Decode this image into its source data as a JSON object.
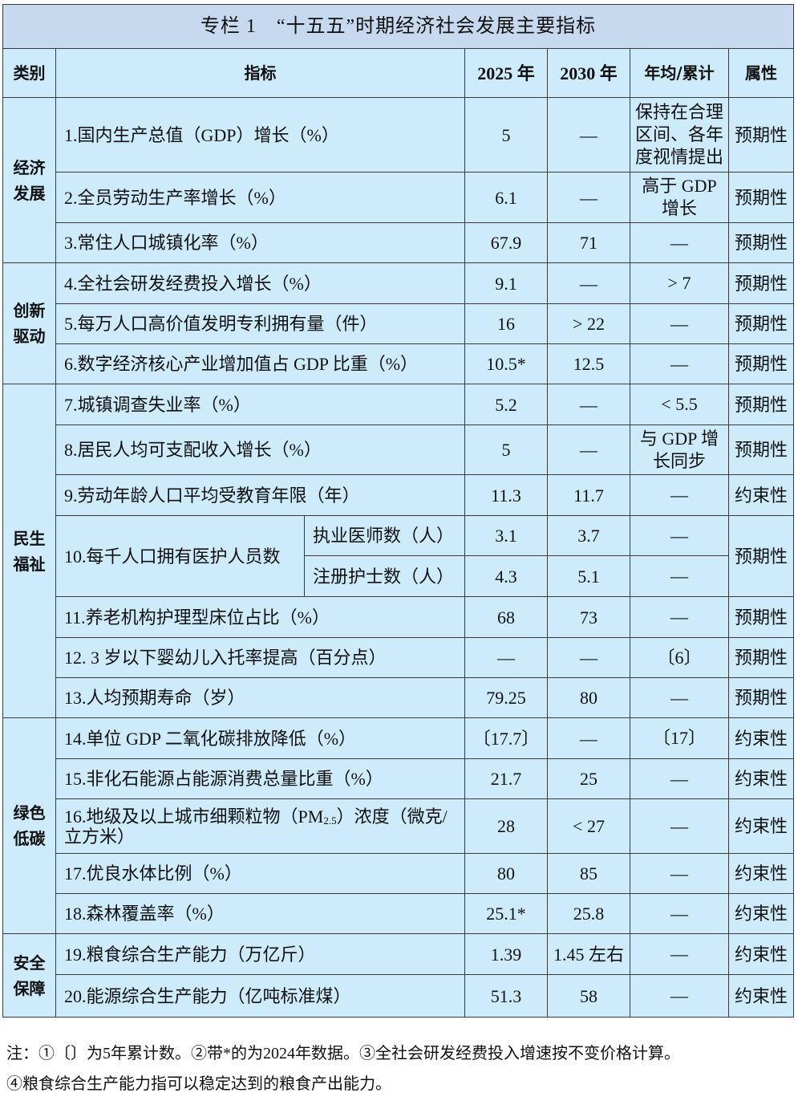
{
  "title": "专栏 1　“十五五”时期经济社会发展主要指标",
  "headers": {
    "category": "类别",
    "indicator": "指标",
    "y2025": "2025 年",
    "y2030": "2030 年",
    "avg": "年均/累计",
    "attr": "属性"
  },
  "groups": [
    {
      "category": "经济发展",
      "rows": [
        {
          "indicator": "1.国内生产总值（GDP）增长（%）",
          "y2025": "5",
          "y2030": "—",
          "avg": "保持在合理区间、各年度视情提出",
          "attr": "预期性"
        },
        {
          "indicator": "2.全员劳动生产率增长（%）",
          "y2025": "6.1",
          "y2030": "—",
          "avg": "高于 GDP 增长",
          "attr": "预期性"
        },
        {
          "indicator": "3.常住人口城镇化率（%）",
          "y2025": "67.9",
          "y2030": "71",
          "avg": "—",
          "attr": "预期性"
        }
      ]
    },
    {
      "category": "创新驱动",
      "rows": [
        {
          "indicator": "4.全社会研发经费投入增长（%）",
          "y2025": "9.1",
          "y2030": "—",
          "avg": "> 7",
          "attr": "预期性"
        },
        {
          "indicator": "5.每万人口高价值发明专利拥有量（件）",
          "y2025": "16",
          "y2030": "> 22",
          "avg": "—",
          "attr": "预期性"
        },
        {
          "indicator": "6.数字经济核心产业增加值占 GDP 比重（%）",
          "y2025": "10.5*",
          "y2030": "12.5",
          "avg": "—",
          "attr": "预期性"
        }
      ]
    },
    {
      "category": "民生福祉",
      "rows": [
        {
          "indicator": "7.城镇调查失业率（%）",
          "y2025": "5.2",
          "y2030": "—",
          "avg": "< 5.5",
          "attr": "预期性"
        },
        {
          "indicator": "8.居民人均可支配收入增长（%）",
          "y2025": "5",
          "y2030": "—",
          "avg": "与 GDP 增长同步",
          "attr": "预期性"
        },
        {
          "indicator": "9.劳动年龄人口平均受教育年限（年）",
          "y2025": "11.3",
          "y2030": "11.7",
          "avg": "—",
          "attr": "约束性"
        },
        {
          "indicator": "10.每千人口拥有医护人员数",
          "attr": "预期性",
          "sub_rows": [
            {
              "label": "执业医师数（人）",
              "y2025": "3.1",
              "y2030": "3.7",
              "avg": "—"
            },
            {
              "label": "注册护士数（人）",
              "y2025": "4.3",
              "y2030": "5.1",
              "avg": "—"
            }
          ]
        },
        {
          "indicator": "11.养老机构护理型床位占比（%）",
          "y2025": "68",
          "y2030": "73",
          "avg": "—",
          "attr": "预期性"
        },
        {
          "indicator": "12. 3 岁以下婴幼儿入托率提高（百分点）",
          "y2025": "—",
          "y2030": "—",
          "avg": "〔6〕",
          "attr": "预期性"
        },
        {
          "indicator": "13.人均预期寿命（岁）",
          "y2025": "79.25",
          "y2030": "80",
          "avg": "—",
          "attr": "预期性"
        }
      ]
    },
    {
      "category": "绿色低碳",
      "rows": [
        {
          "indicator": "14.单位 GDP 二氧化碳排放降低（%）",
          "y2025": "〔17.7〕",
          "y2030": "—",
          "avg": "〔17〕",
          "attr": "约束性"
        },
        {
          "indicator": "15.非化石能源占能源消费总量比重（%）",
          "y2025": "21.7",
          "y2030": "25",
          "avg": "—",
          "attr": "约束性"
        },
        {
          "indicator": "16.地级及以上城市细颗粒物（PM",
          "indicator_sub": "2.5",
          "indicator_post": "）浓度（微克/立方米）",
          "y2025": "28",
          "y2030": "< 27",
          "avg": "—",
          "attr": "约束性"
        },
        {
          "indicator": "17.优良水体比例（%）",
          "y2025": "80",
          "y2030": "85",
          "avg": "—",
          "attr": "约束性"
        },
        {
          "indicator": "18.森林覆盖率（%）",
          "y2025": "25.1*",
          "y2030": "25.8",
          "avg": "—",
          "attr": "约束性"
        }
      ]
    },
    {
      "category": "安全保障",
      "rows": [
        {
          "indicator": "19.粮食综合生产能力（万亿斤）",
          "y2025": "1.39",
          "y2030": "1.45 左右",
          "avg": "—",
          "attr": "约束性"
        },
        {
          "indicator": "20.能源综合生产能力（亿吨标准煤）",
          "y2025": "51.3",
          "y2030": "58",
          "avg": "—",
          "attr": "约束性"
        }
      ]
    }
  ],
  "notes": [
    "注：①〔〕为5年累计数。②带*的为2024年数据。③全社会研发经费投入增速按不变价格计算。",
    "④粮食综合生产能力指可以稳定达到的粮食产出能力。"
  ]
}
